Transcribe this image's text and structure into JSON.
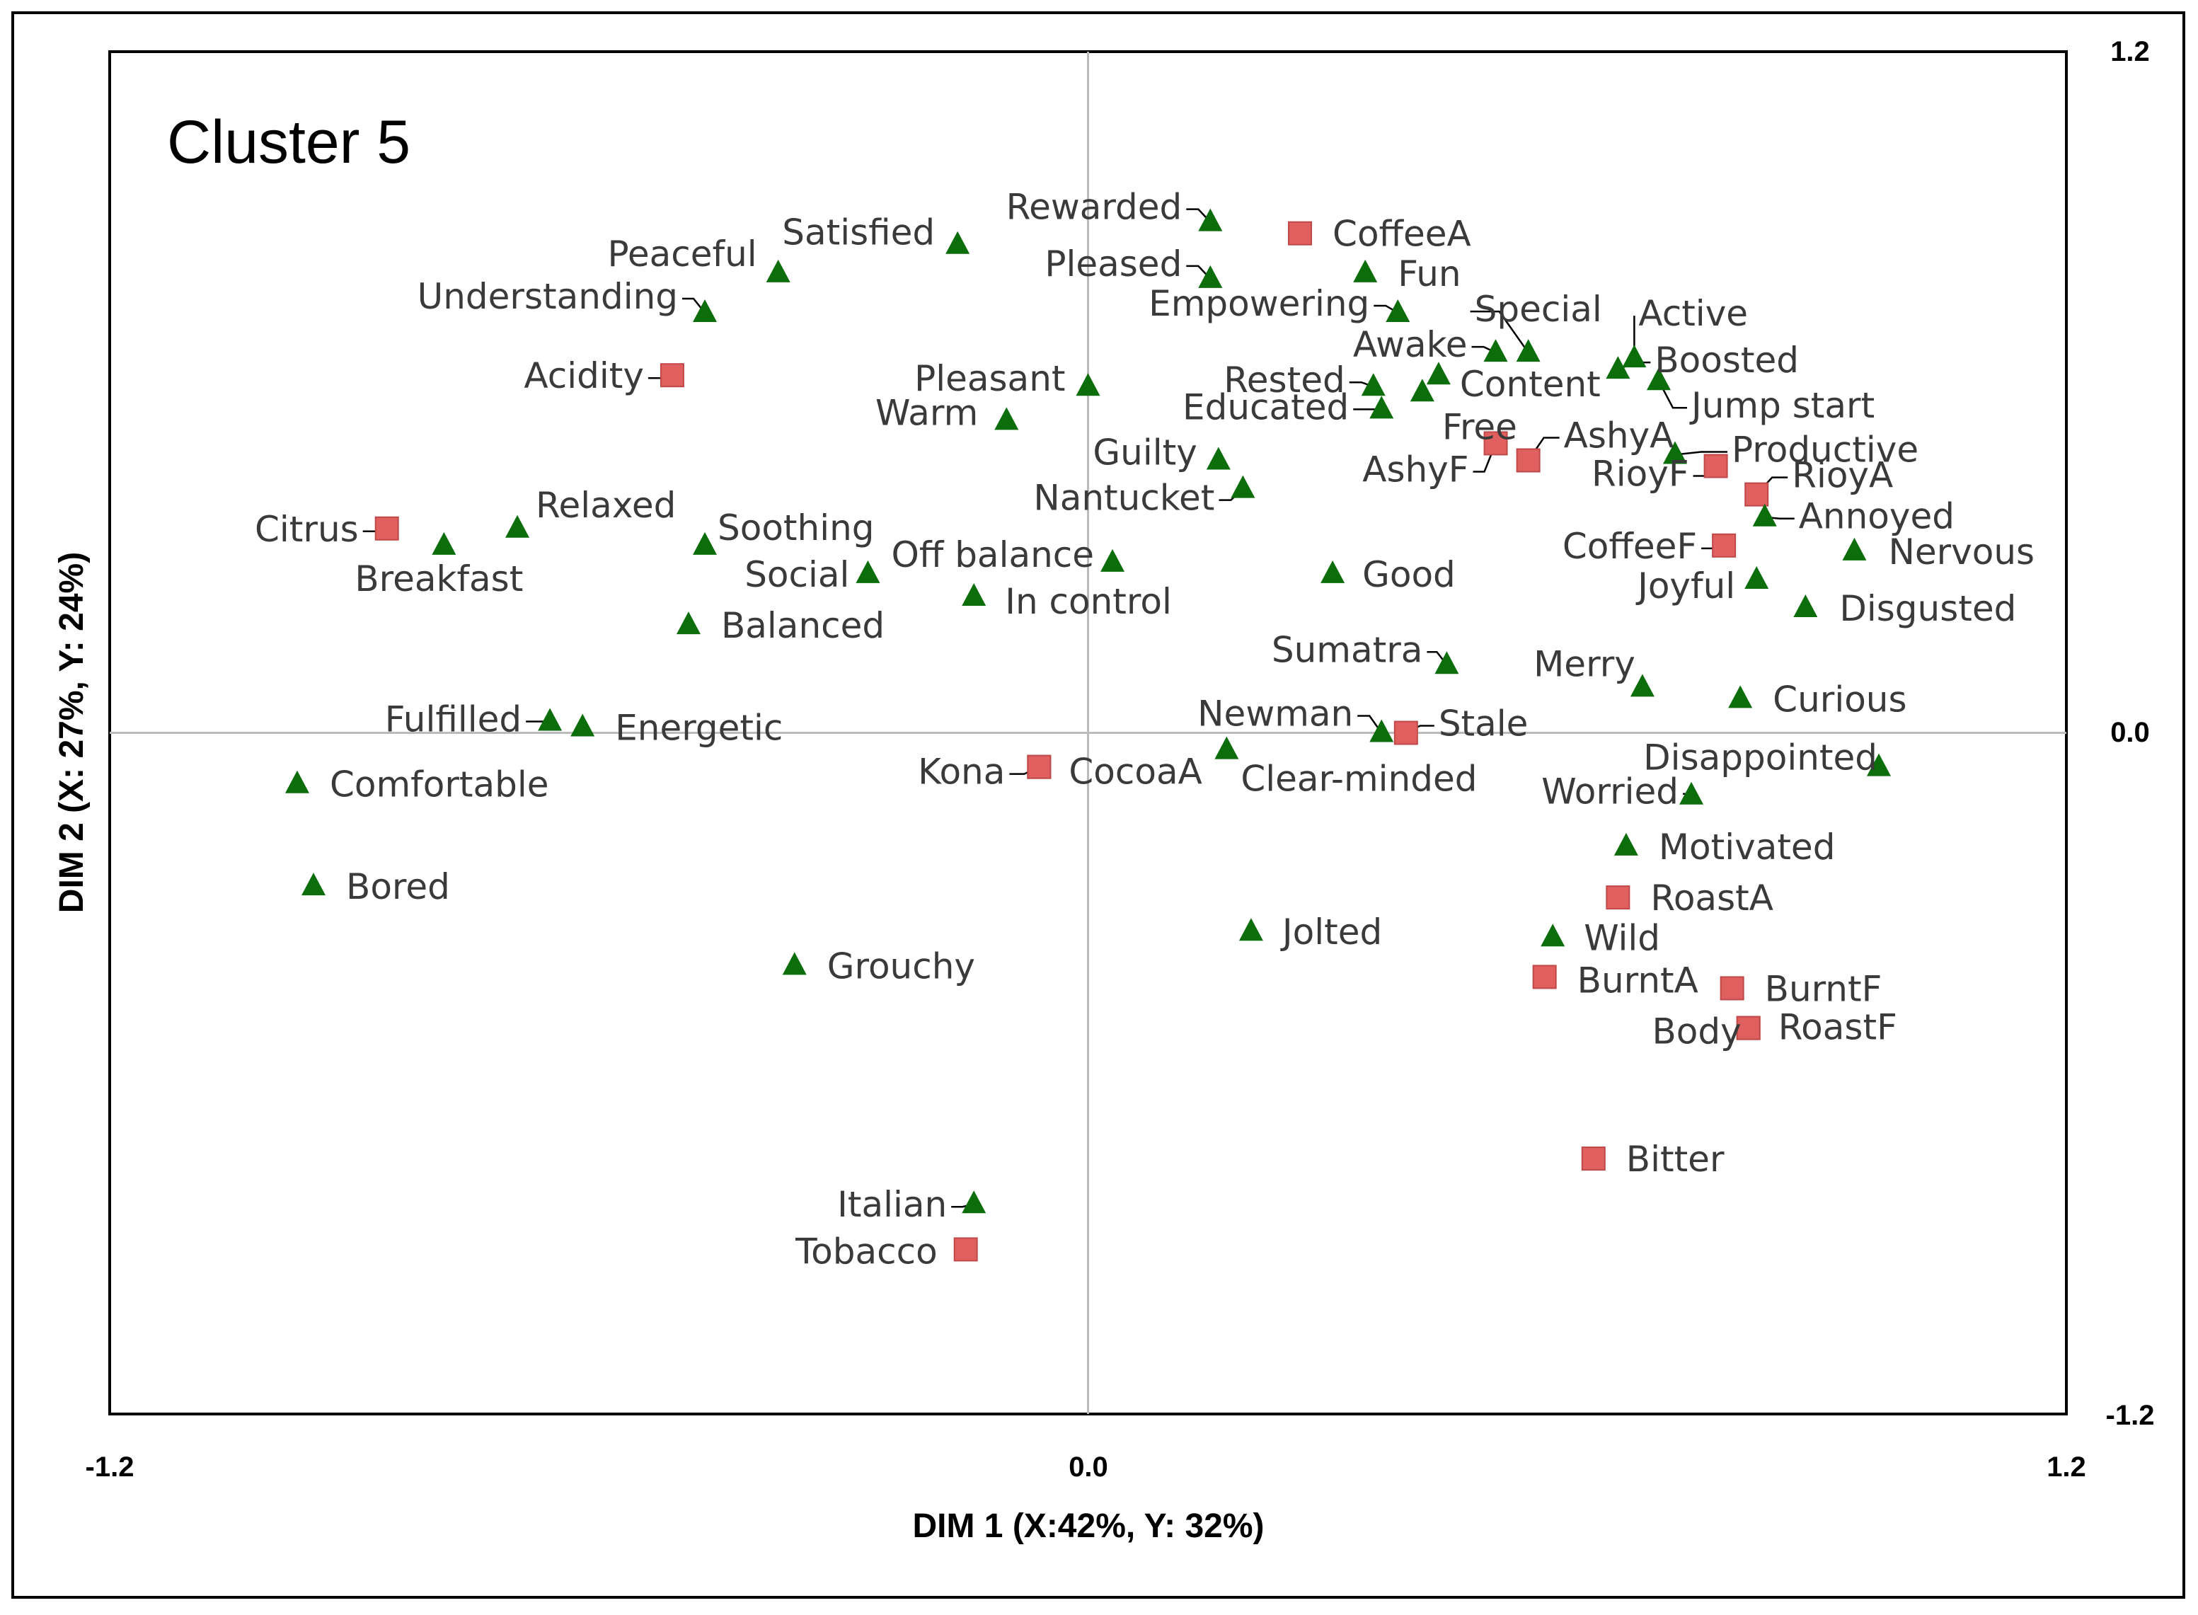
{
  "chart_data": {
    "type": "scatter",
    "title": "Cluster 5",
    "xlabel": "DIM 1 (X:42%, Y: 32%)",
    "ylabel": "DIM 2 (X: 27%, Y: 24%)",
    "xlim": [
      -1.2,
      1.2
    ],
    "ylim": [
      -1.2,
      1.2
    ],
    "x_ticks": [
      "-1.2",
      "0.0",
      "1.2"
    ],
    "y_ticks": [
      "1.2",
      "0.0",
      "-1.2"
    ],
    "grid": false,
    "zero_lines": true,
    "colors": {
      "attributes": "#e06060",
      "emotions": "#0b6e0b",
      "crosshair": "#bbbbbb",
      "frame": "#000000"
    },
    "series": [
      {
        "name": "Attributes",
        "marker": "square",
        "points": [
          {
            "label": "CoffeeA",
            "x": 0.26,
            "y": 0.88
          },
          {
            "label": "Acidity",
            "x": -0.51,
            "y": 0.63
          },
          {
            "label": "Citrus",
            "x": -0.86,
            "y": 0.36
          },
          {
            "label": "AshyA",
            "x": 0.54,
            "y": 0.48
          },
          {
            "label": "AshyF",
            "x": 0.5,
            "y": 0.51
          },
          {
            "label": "RioyF",
            "x": 0.77,
            "y": 0.47
          },
          {
            "label": "RioyA",
            "x": 0.82,
            "y": 0.42
          },
          {
            "label": "CoffeeF",
            "x": 0.78,
            "y": 0.33
          },
          {
            "label": "Stale",
            "x": 0.39,
            "y": 0.0
          },
          {
            "label": "Kona",
            "x": -0.06,
            "y": -0.06
          },
          {
            "label": "CocoaA",
            "x": -0.06,
            "y": -0.06
          },
          {
            "label": "RoastA",
            "x": 0.65,
            "y": -0.29
          },
          {
            "label": "BurntA",
            "x": 0.56,
            "y": -0.43
          },
          {
            "label": "BurntF",
            "x": 0.79,
            "y": -0.45
          },
          {
            "label": "RoastF",
            "x": 0.81,
            "y": -0.52
          },
          {
            "label": "Body",
            "x": 0.81,
            "y": -0.52
          },
          {
            "label": "Bitter",
            "x": 0.62,
            "y": -0.75
          },
          {
            "label": "Tobacco",
            "x": -0.15,
            "y": -0.91
          }
        ]
      },
      {
        "name": "Emotions",
        "marker": "triangle",
        "points": [
          {
            "label": "Satisfied",
            "x": -0.16,
            "y": 0.86
          },
          {
            "label": "Peaceful",
            "x": -0.38,
            "y": 0.81
          },
          {
            "label": "Understanding",
            "x": -0.47,
            "y": 0.74
          },
          {
            "label": "Rewarded",
            "x": 0.15,
            "y": 0.9
          },
          {
            "label": "Pleased",
            "x": 0.15,
            "y": 0.8
          },
          {
            "label": "Fun",
            "x": 0.34,
            "y": 0.81
          },
          {
            "label": "Empowering",
            "x": 0.38,
            "y": 0.74
          },
          {
            "label": "Special",
            "x": 0.54,
            "y": 0.67
          },
          {
            "label": "Awake",
            "x": 0.5,
            "y": 0.67
          },
          {
            "label": "Active",
            "x": 0.67,
            "y": 0.66
          },
          {
            "label": "Boosted",
            "x": 0.65,
            "y": 0.64
          },
          {
            "label": "Jump start",
            "x": 0.7,
            "y": 0.62
          },
          {
            "label": "Content",
            "x": 0.43,
            "y": 0.63
          },
          {
            "label": "Rested",
            "x": 0.35,
            "y": 0.61
          },
          {
            "label": "Free",
            "x": 0.41,
            "y": 0.6
          },
          {
            "label": "Educated",
            "x": 0.36,
            "y": 0.57
          },
          {
            "label": "Pleasant",
            "x": 0.0,
            "y": 0.61
          },
          {
            "label": "Warm",
            "x": -0.1,
            "y": 0.55
          },
          {
            "label": "Guilty",
            "x": 0.16,
            "y": 0.48
          },
          {
            "label": "Nantucket",
            "x": 0.19,
            "y": 0.43
          },
          {
            "label": "Productive",
            "x": 0.72,
            "y": 0.49
          },
          {
            "label": "Annoyed",
            "x": 0.83,
            "y": 0.38
          },
          {
            "label": "Nervous",
            "x": 0.94,
            "y": 0.32
          },
          {
            "label": "Joyful",
            "x": 0.82,
            "y": 0.27
          },
          {
            "label": "Disgusted",
            "x": 0.88,
            "y": 0.22
          },
          {
            "label": "Relaxed",
            "x": -0.7,
            "y": 0.36
          },
          {
            "label": "Breakfast",
            "x": -0.79,
            "y": 0.33
          },
          {
            "label": "Soothing",
            "x": -0.47,
            "y": 0.33
          },
          {
            "label": "Social",
            "x": -0.27,
            "y": 0.28
          },
          {
            "label": "Off balance",
            "x": 0.03,
            "y": 0.3
          },
          {
            "label": "In control",
            "x": -0.14,
            "y": 0.24
          },
          {
            "label": "Good",
            "x": 0.3,
            "y": 0.28
          },
          {
            "label": "Balanced",
            "x": -0.49,
            "y": 0.19
          },
          {
            "label": "Sumatra",
            "x": 0.44,
            "y": 0.12
          },
          {
            "label": "Merry",
            "x": 0.68,
            "y": 0.08
          },
          {
            "label": "Curious",
            "x": 0.8,
            "y": 0.06
          },
          {
            "label": "Fulfilled",
            "x": -0.66,
            "y": 0.02
          },
          {
            "label": "Energetic",
            "x": -0.62,
            "y": 0.01
          },
          {
            "label": "Newman",
            "x": 0.36,
            "y": 0.0
          },
          {
            "label": "Clear-minded",
            "x": 0.17,
            "y": -0.03
          },
          {
            "label": "Disappointed",
            "x": 0.97,
            "y": -0.06
          },
          {
            "label": "Worried",
            "x": 0.74,
            "y": -0.11
          },
          {
            "label": "Comfortable",
            "x": -0.97,
            "y": -0.09
          },
          {
            "label": "Motivated",
            "x": 0.66,
            "y": -0.2
          },
          {
            "label": "Bored",
            "x": -0.95,
            "y": -0.27
          },
          {
            "label": "Jolted",
            "x": 0.2,
            "y": -0.35
          },
          {
            "label": "Wild",
            "x": 0.57,
            "y": -0.36
          },
          {
            "label": "Grouchy",
            "x": -0.36,
            "y": -0.41
          },
          {
            "label": "Italian",
            "x": -0.14,
            "y": -0.83
          }
        ]
      }
    ]
  }
}
